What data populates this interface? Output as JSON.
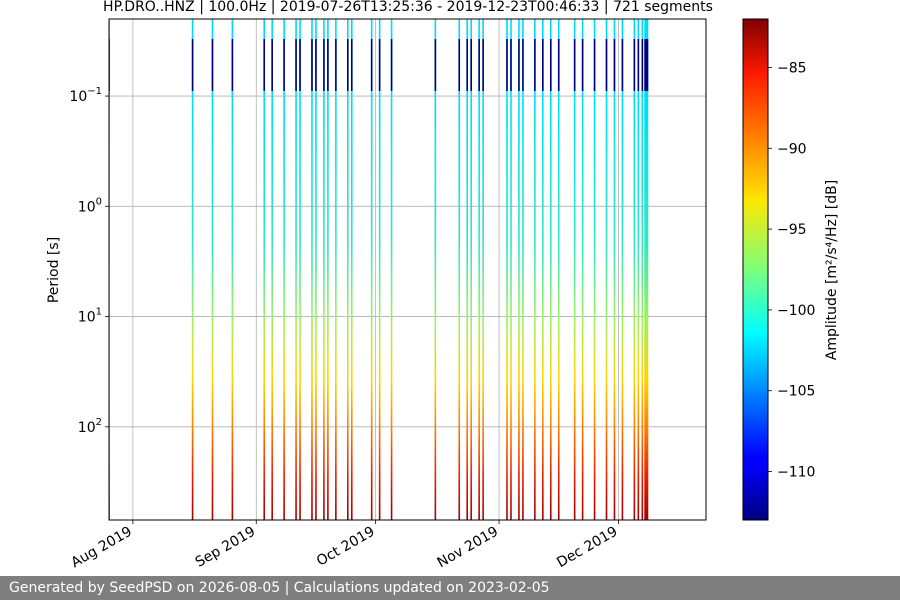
{
  "chart_data": {
    "type": "heatmap",
    "title": "HP.DRO..HNZ | 100.0Hz | 2019-07-26T13:25:36 - 2019-12-23T00:46:33 | 721 segments",
    "ylabel": "Period [s]",
    "y_scale": "log",
    "y_inverted": true,
    "ylim": [
      0.02,
      700
    ],
    "y_ticks": [
      {
        "value": 0.1,
        "base": "10",
        "exp": "−1"
      },
      {
        "value": 1,
        "base": "10",
        "exp": "0"
      },
      {
        "value": 10,
        "base": "10",
        "exp": "1"
      },
      {
        "value": 100,
        "base": "10",
        "exp": "2"
      }
    ],
    "xlim": [
      "2019-07-26",
      "2019-12-23"
    ],
    "x_ticks": [
      {
        "date": "2019-08-01",
        "label": "Aug 2019"
      },
      {
        "date": "2019-09-01",
        "label": "Sep 2019"
      },
      {
        "date": "2019-10-01",
        "label": "Oct 2019"
      },
      {
        "date": "2019-11-01",
        "label": "Nov 2019"
      },
      {
        "date": "2019-12-01",
        "label": "Dec 2019"
      }
    ],
    "grid": true,
    "colorbar": {
      "label": "Amplitude [m²/s⁴/Hz] [dB]",
      "colormap": "jet",
      "range": [
        -113,
        -82
      ],
      "ticks": [
        {
          "value": -85,
          "label": "−85"
        },
        {
          "value": -90,
          "label": "−90"
        },
        {
          "value": -95,
          "label": "−95"
        },
        {
          "value": -100,
          "label": "−100"
        },
        {
          "value": -105,
          "label": "−105"
        },
        {
          "value": -110,
          "label": "−110"
        }
      ]
    },
    "segment_dates": [
      "2019-07-26",
      "2019-08-16",
      "2019-08-21",
      "2019-08-26",
      "2019-09-03",
      "2019-09-05",
      "2019-09-08",
      "2019-09-11",
      "2019-09-12",
      "2019-09-15",
      "2019-09-16",
      "2019-09-18",
      "2019-09-19",
      "2019-09-21",
      "2019-09-24",
      "2019-09-25",
      "2019-09-30",
      "2019-10-02",
      "2019-10-05",
      "2019-10-16",
      "2019-10-22",
      "2019-10-24",
      "2019-10-25",
      "2019-10-27",
      "2019-10-28",
      "2019-11-03",
      "2019-11-04",
      "2019-11-06",
      "2019-11-07",
      "2019-11-10",
      "2019-11-12",
      "2019-11-14",
      "2019-11-16",
      "2019-11-20",
      "2019-11-22",
      "2019-11-25",
      "2019-11-28",
      "2019-11-30",
      "2019-12-02",
      "2019-12-05",
      "2019-12-06",
      "2019-12-07",
      "2019-12-08"
    ]
  },
  "footer": {
    "text": "Generated by SeedPSD on 2026-08-05 | Calculations updated on 2023-02-05"
  }
}
